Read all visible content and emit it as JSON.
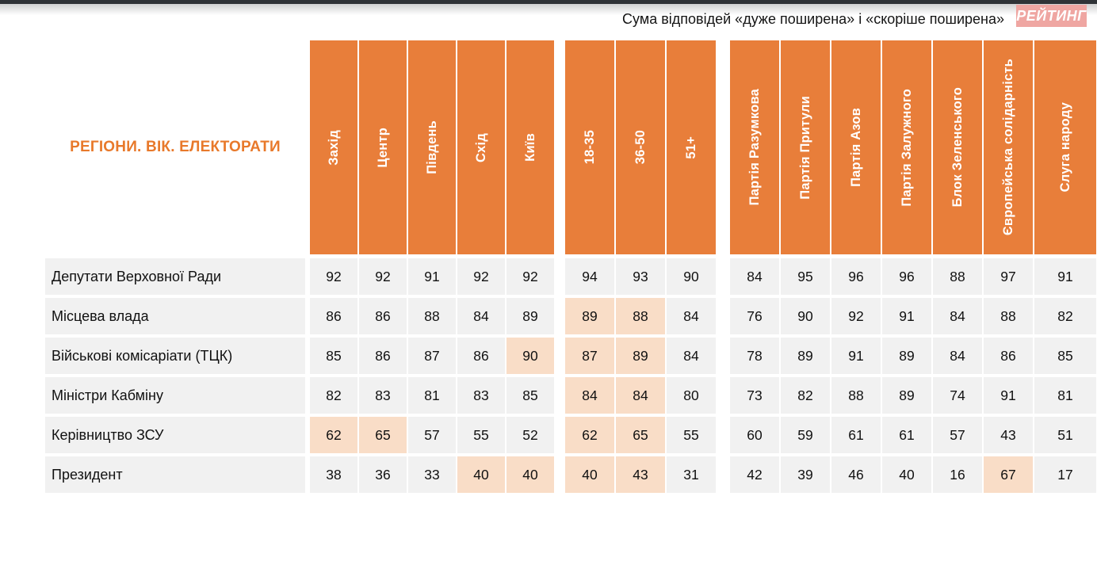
{
  "header": {
    "subtitle": "Сума відповідей «дуже поширена» і «скоріше поширена»",
    "logo_text": "РЕЙТИНГ"
  },
  "colors": {
    "header_orange": "#E87E3A",
    "cell_gray": "#F1F1F1",
    "highlight_peach": "#F9DDC7",
    "title_orange": "#E8792B",
    "top_bar": "#2F3337",
    "logo_pink": "#EFA6A2"
  },
  "chart_data": {
    "type": "table",
    "title": "РЕГІОНИ. ВІК. ЕЛЕКТОРАТИ",
    "subtitle": "Сума відповідей «дуже поширена» і «скоріше поширена»",
    "column_groups": [
      {
        "name": "regions",
        "columns": [
          "Захід",
          "Центр",
          "Південь",
          "Схід",
          "Київ"
        ]
      },
      {
        "name": "age",
        "columns": [
          "18-35",
          "36-50",
          "51+"
        ]
      },
      {
        "name": "electorates",
        "columns": [
          "Партія Разумкова",
          "Партія Притули",
          "Партія Азов",
          "Партія Залужного",
          "Блок Зеленського",
          "Європейська солідарність",
          "Слуга народу"
        ]
      }
    ],
    "rows": [
      {
        "label": "Депутати Верховної Ради",
        "values": [
          92,
          92,
          91,
          92,
          92,
          94,
          93,
          90,
          84,
          95,
          96,
          96,
          88,
          97,
          91
        ],
        "highlighted_cols": []
      },
      {
        "label": "Місцева влада",
        "values": [
          86,
          86,
          88,
          84,
          89,
          89,
          88,
          84,
          76,
          90,
          92,
          91,
          84,
          88,
          82
        ],
        "highlighted_cols": [
          5,
          6
        ]
      },
      {
        "label": "Військові комісаріати (ТЦК)",
        "values": [
          85,
          86,
          87,
          86,
          90,
          87,
          89,
          84,
          78,
          89,
          91,
          89,
          84,
          86,
          85
        ],
        "highlighted_cols": [
          4,
          5,
          6
        ]
      },
      {
        "label": "Міністри Кабміну",
        "values": [
          82,
          83,
          81,
          83,
          85,
          84,
          84,
          80,
          73,
          82,
          88,
          89,
          74,
          91,
          81
        ],
        "highlighted_cols": [
          5,
          6
        ]
      },
      {
        "label": "Керівництво ЗСУ",
        "values": [
          62,
          65,
          57,
          55,
          52,
          62,
          65,
          55,
          60,
          59,
          61,
          61,
          57,
          43,
          51
        ],
        "highlighted_cols": [
          0,
          1,
          5,
          6
        ]
      },
      {
        "label": "Президент",
        "values": [
          38,
          36,
          33,
          40,
          40,
          40,
          43,
          31,
          42,
          39,
          46,
          40,
          16,
          67,
          17
        ],
        "highlighted_cols": [
          3,
          4,
          5,
          6,
          13
        ]
      }
    ]
  }
}
